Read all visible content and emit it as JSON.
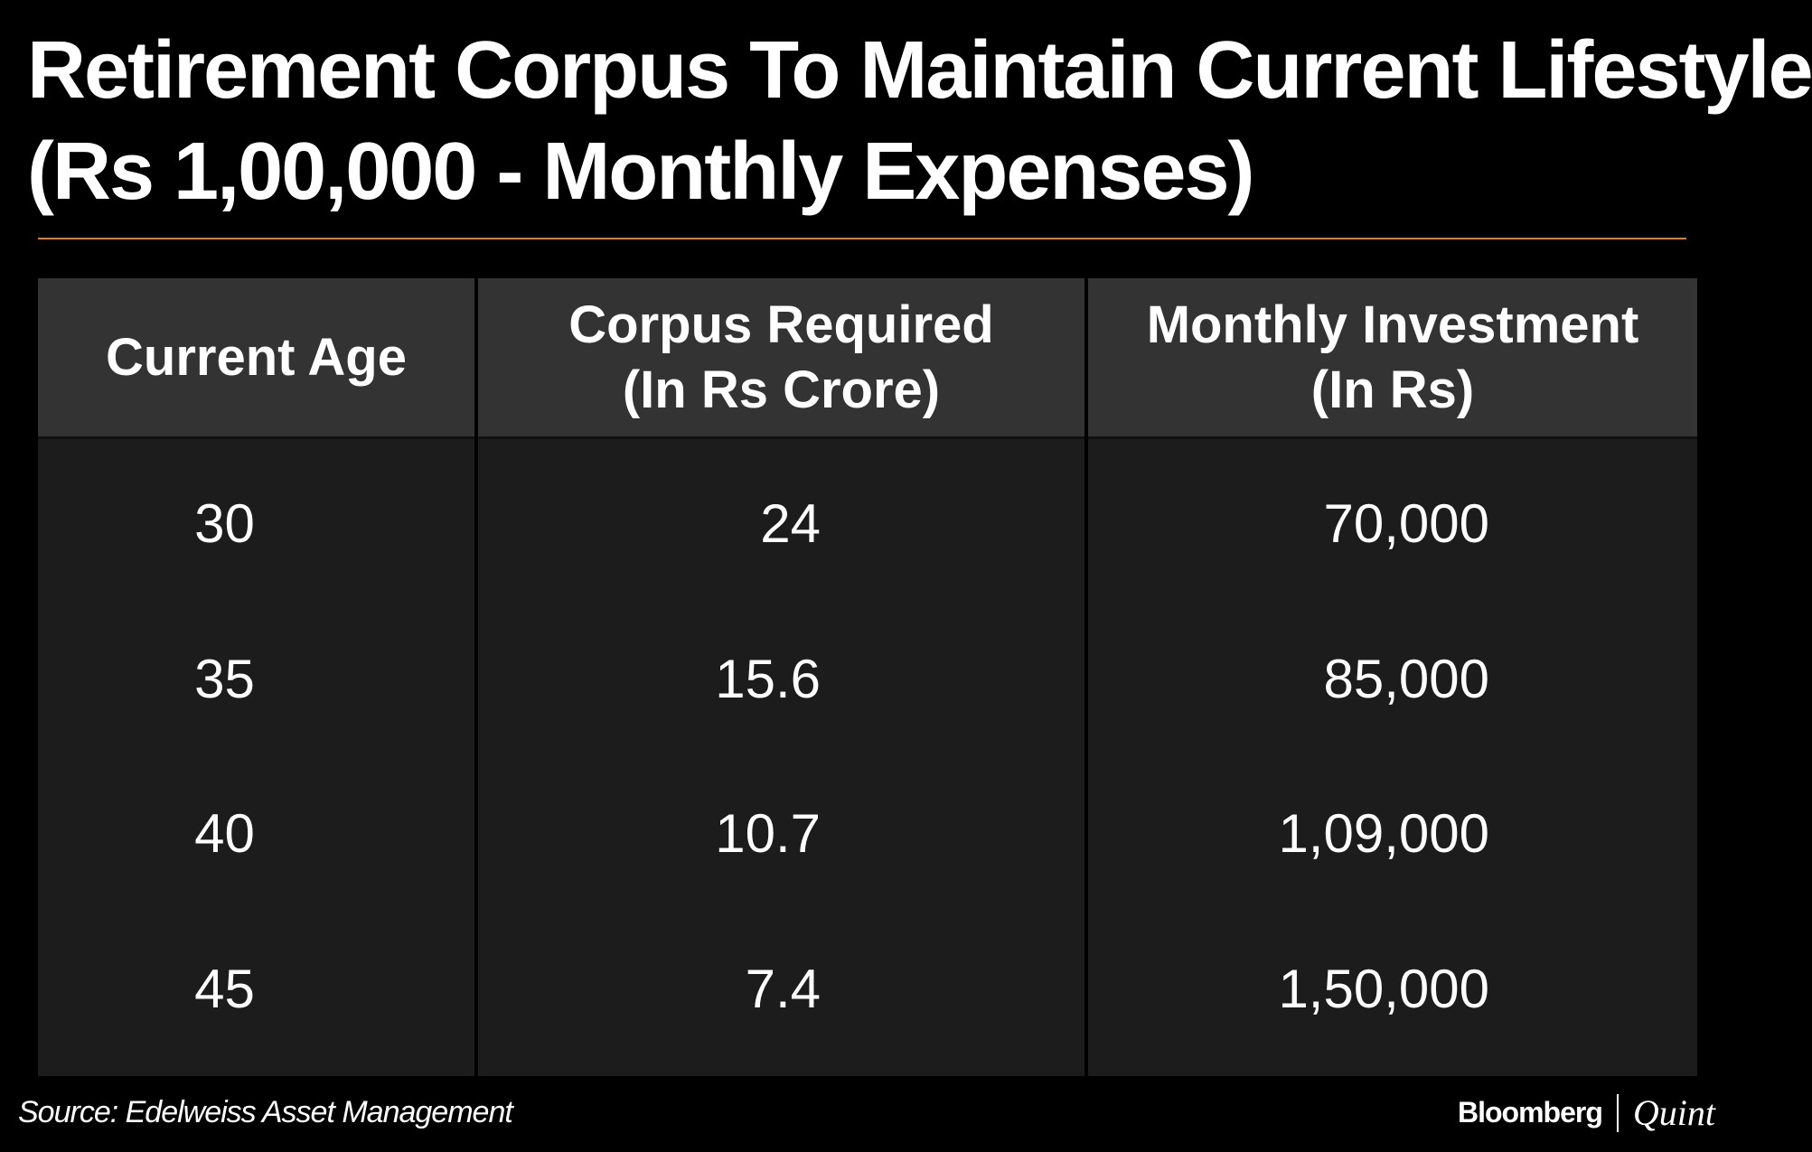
{
  "title_line1": "Retirement Corpus To Maintain Current Lifestyle",
  "title_line2": "(Rs 1,00,000 - Monthly Expenses)",
  "colors": {
    "background": "#000000",
    "rule": "#e07b22",
    "header_bg": "#333333",
    "body_bg": "#1c1c1c",
    "text": "#ffffff"
  },
  "chart_data": {
    "type": "table",
    "title": "Retirement Corpus To Maintain Current Lifestyle (Rs 1,00,000 - Monthly Expenses)",
    "columns": [
      {
        "line1": "Current Age",
        "line2": ""
      },
      {
        "line1": "Corpus Required",
        "line2": "(In Rs Crore)"
      },
      {
        "line1": "Monthly Investment",
        "line2": "(In Rs)"
      }
    ],
    "rows": [
      [
        "30",
        "24",
        "70,000"
      ],
      [
        "35",
        "15.6",
        "85,000"
      ],
      [
        "40",
        "10.7",
        "1,09,000"
      ],
      [
        "45",
        "7.4",
        "1,50,000"
      ]
    ]
  },
  "footer": {
    "source": "Source: Edelweiss Asset Management",
    "brand_primary": "Bloomberg",
    "brand_secondary": "Quint"
  }
}
